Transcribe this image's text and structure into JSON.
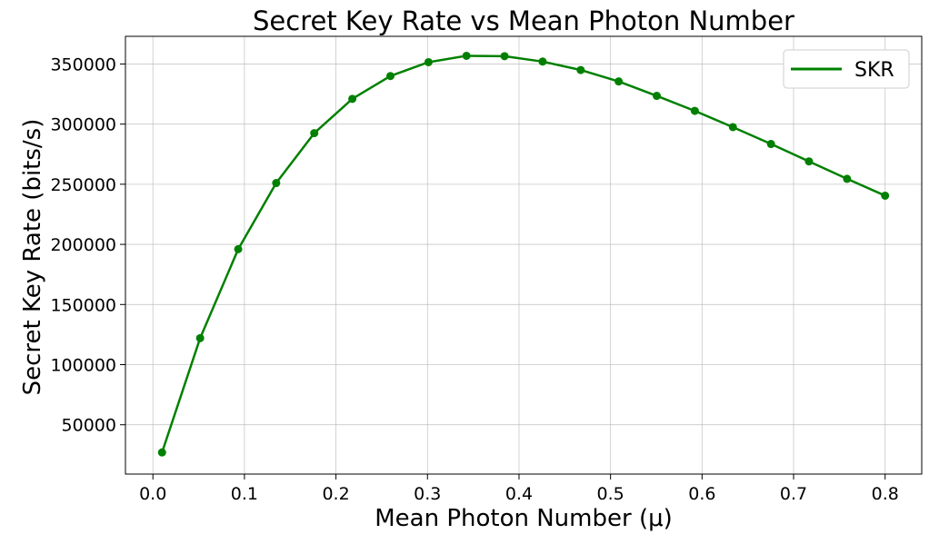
{
  "chart_data": {
    "type": "line",
    "title": "Secret Key Rate vs Mean Photon Number",
    "xlabel": "Mean Photon Number (μ)",
    "ylabel": "Secret Key Rate (bits/s)",
    "xlim": [
      -0.03,
      0.84
    ],
    "ylim": [
      9000,
      373000
    ],
    "xticks": [
      0.0,
      0.1,
      0.2,
      0.3,
      0.4,
      0.5,
      0.6,
      0.7,
      0.8
    ],
    "xtick_labels": [
      "0.0",
      "0.1",
      "0.2",
      "0.3",
      "0.4",
      "0.5",
      "0.6",
      "0.7",
      "0.8"
    ],
    "yticks": [
      50000,
      100000,
      150000,
      200000,
      250000,
      300000,
      350000
    ],
    "ytick_labels": [
      "50000",
      "100000",
      "150000",
      "200000",
      "250000",
      "300000",
      "350000"
    ],
    "grid": true,
    "legend_position": "top-right",
    "series": [
      {
        "name": "SKR",
        "color": "#008000",
        "marker": "circle",
        "x": [
          0.01,
          0.0516,
          0.0932,
          0.1347,
          0.1763,
          0.2179,
          0.2595,
          0.3011,
          0.3426,
          0.3842,
          0.4258,
          0.4674,
          0.5089,
          0.5505,
          0.5921,
          0.6337,
          0.6753,
          0.7168,
          0.7584,
          0.8
        ],
        "y": [
          27000,
          122000,
          196000,
          251000,
          292500,
          321000,
          340000,
          351500,
          356800,
          356500,
          352000,
          345000,
          335500,
          323500,
          311000,
          297500,
          283500,
          269000,
          254500,
          240500
        ]
      }
    ]
  }
}
